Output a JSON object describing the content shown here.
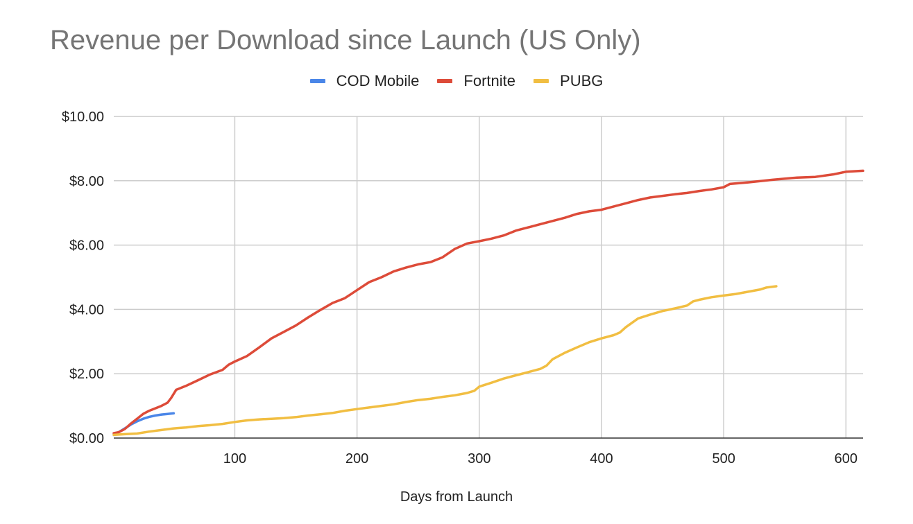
{
  "chart_data": {
    "type": "line",
    "title": "Revenue per Download since Launch (US Only)",
    "xlabel": "Days from Launch",
    "ylabel": "",
    "xlim": [
      1,
      614
    ],
    "ylim": [
      0,
      10
    ],
    "x_ticks": [
      100,
      200,
      300,
      400,
      500,
      600
    ],
    "y_ticks": [
      0,
      2,
      4,
      6,
      8,
      10
    ],
    "y_tick_labels": [
      "$0.00",
      "$2.00",
      "$4.00",
      "$6.00",
      "$8.00",
      "$10.00"
    ],
    "grid": true,
    "legend_position": "top-center",
    "series": [
      {
        "name": "COD Mobile",
        "color": "#4a86e8",
        "points": [
          [
            1,
            0.1
          ],
          [
            5,
            0.18
          ],
          [
            10,
            0.3
          ],
          [
            15,
            0.42
          ],
          [
            20,
            0.52
          ],
          [
            25,
            0.6
          ],
          [
            30,
            0.66
          ],
          [
            35,
            0.7
          ],
          [
            40,
            0.73
          ],
          [
            45,
            0.75
          ],
          [
            50,
            0.77
          ]
        ]
      },
      {
        "name": "Fortnite",
        "color": "#dd4b39",
        "points": [
          [
            1,
            0.15
          ],
          [
            5,
            0.18
          ],
          [
            10,
            0.28
          ],
          [
            15,
            0.45
          ],
          [
            20,
            0.6
          ],
          [
            25,
            0.75
          ],
          [
            30,
            0.85
          ],
          [
            40,
            1.0
          ],
          [
            45,
            1.1
          ],
          [
            48,
            1.25
          ],
          [
            52,
            1.5
          ],
          [
            60,
            1.62
          ],
          [
            70,
            1.8
          ],
          [
            80,
            1.98
          ],
          [
            90,
            2.12
          ],
          [
            95,
            2.28
          ],
          [
            100,
            2.38
          ],
          [
            110,
            2.55
          ],
          [
            120,
            2.82
          ],
          [
            130,
            3.1
          ],
          [
            140,
            3.3
          ],
          [
            150,
            3.5
          ],
          [
            160,
            3.75
          ],
          [
            170,
            3.98
          ],
          [
            180,
            4.2
          ],
          [
            190,
            4.35
          ],
          [
            200,
            4.6
          ],
          [
            210,
            4.85
          ],
          [
            220,
            5.0
          ],
          [
            230,
            5.18
          ],
          [
            240,
            5.3
          ],
          [
            250,
            5.4
          ],
          [
            260,
            5.47
          ],
          [
            270,
            5.62
          ],
          [
            280,
            5.88
          ],
          [
            290,
            6.05
          ],
          [
            300,
            6.12
          ],
          [
            310,
            6.2
          ],
          [
            320,
            6.3
          ],
          [
            330,
            6.45
          ],
          [
            340,
            6.55
          ],
          [
            350,
            6.65
          ],
          [
            360,
            6.75
          ],
          [
            370,
            6.85
          ],
          [
            380,
            6.97
          ],
          [
            390,
            7.05
          ],
          [
            400,
            7.1
          ],
          [
            410,
            7.2
          ],
          [
            420,
            7.3
          ],
          [
            430,
            7.4
          ],
          [
            440,
            7.48
          ],
          [
            450,
            7.53
          ],
          [
            460,
            7.58
          ],
          [
            470,
            7.62
          ],
          [
            480,
            7.68
          ],
          [
            490,
            7.73
          ],
          [
            500,
            7.8
          ],
          [
            505,
            7.9
          ],
          [
            520,
            7.95
          ],
          [
            540,
            8.03
          ],
          [
            560,
            8.1
          ],
          [
            575,
            8.12
          ],
          [
            590,
            8.2
          ],
          [
            600,
            8.28
          ],
          [
            614,
            8.31
          ]
        ]
      },
      {
        "name": "PUBG",
        "color": "#f1be42",
        "points": [
          [
            1,
            0.1
          ],
          [
            10,
            0.12
          ],
          [
            20,
            0.14
          ],
          [
            30,
            0.2
          ],
          [
            40,
            0.25
          ],
          [
            50,
            0.3
          ],
          [
            60,
            0.33
          ],
          [
            70,
            0.37
          ],
          [
            80,
            0.4
          ],
          [
            90,
            0.44
          ],
          [
            100,
            0.5
          ],
          [
            110,
            0.55
          ],
          [
            120,
            0.58
          ],
          [
            130,
            0.6
          ],
          [
            140,
            0.62
          ],
          [
            150,
            0.65
          ],
          [
            160,
            0.7
          ],
          [
            170,
            0.74
          ],
          [
            180,
            0.78
          ],
          [
            190,
            0.85
          ],
          [
            200,
            0.9
          ],
          [
            210,
            0.95
          ],
          [
            220,
            1.0
          ],
          [
            230,
            1.05
          ],
          [
            240,
            1.12
          ],
          [
            250,
            1.18
          ],
          [
            260,
            1.22
          ],
          [
            270,
            1.28
          ],
          [
            280,
            1.33
          ],
          [
            290,
            1.4
          ],
          [
            296,
            1.47
          ],
          [
            300,
            1.6
          ],
          [
            310,
            1.72
          ],
          [
            320,
            1.85
          ],
          [
            330,
            1.95
          ],
          [
            340,
            2.05
          ],
          [
            350,
            2.15
          ],
          [
            355,
            2.25
          ],
          [
            360,
            2.45
          ],
          [
            370,
            2.65
          ],
          [
            380,
            2.82
          ],
          [
            390,
            2.98
          ],
          [
            400,
            3.1
          ],
          [
            410,
            3.2
          ],
          [
            415,
            3.28
          ],
          [
            420,
            3.45
          ],
          [
            430,
            3.72
          ],
          [
            440,
            3.84
          ],
          [
            450,
            3.95
          ],
          [
            460,
            4.03
          ],
          [
            470,
            4.12
          ],
          [
            475,
            4.25
          ],
          [
            480,
            4.3
          ],
          [
            490,
            4.38
          ],
          [
            500,
            4.43
          ],
          [
            510,
            4.48
          ],
          [
            520,
            4.55
          ],
          [
            530,
            4.62
          ],
          [
            535,
            4.68
          ],
          [
            543,
            4.72
          ]
        ]
      }
    ]
  }
}
